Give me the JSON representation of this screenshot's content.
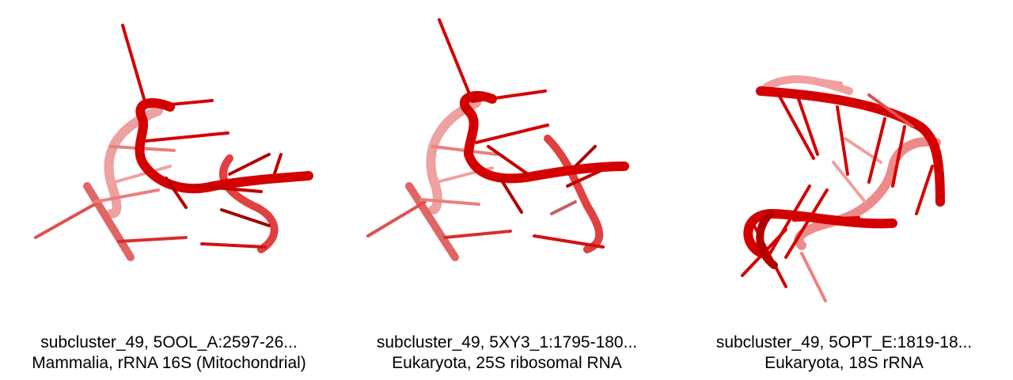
{
  "panels": [
    {
      "line1": "subcluster_49, 5OOL_A:2597-26...",
      "line2": "Mammalia, rRNA 16S (Mitochondrial)"
    },
    {
      "line1": "subcluster_49, 5XY3_1:1795-180...",
      "line2": "Eukaryota, 25S ribosomal RNA"
    },
    {
      "line1": "subcluster_49, 5OPT_E:1819-18...",
      "line2": "Eukaryota, 18S rRNA"
    }
  ],
  "colors": {
    "backbone": "#d40000",
    "faded": "#f08080"
  }
}
